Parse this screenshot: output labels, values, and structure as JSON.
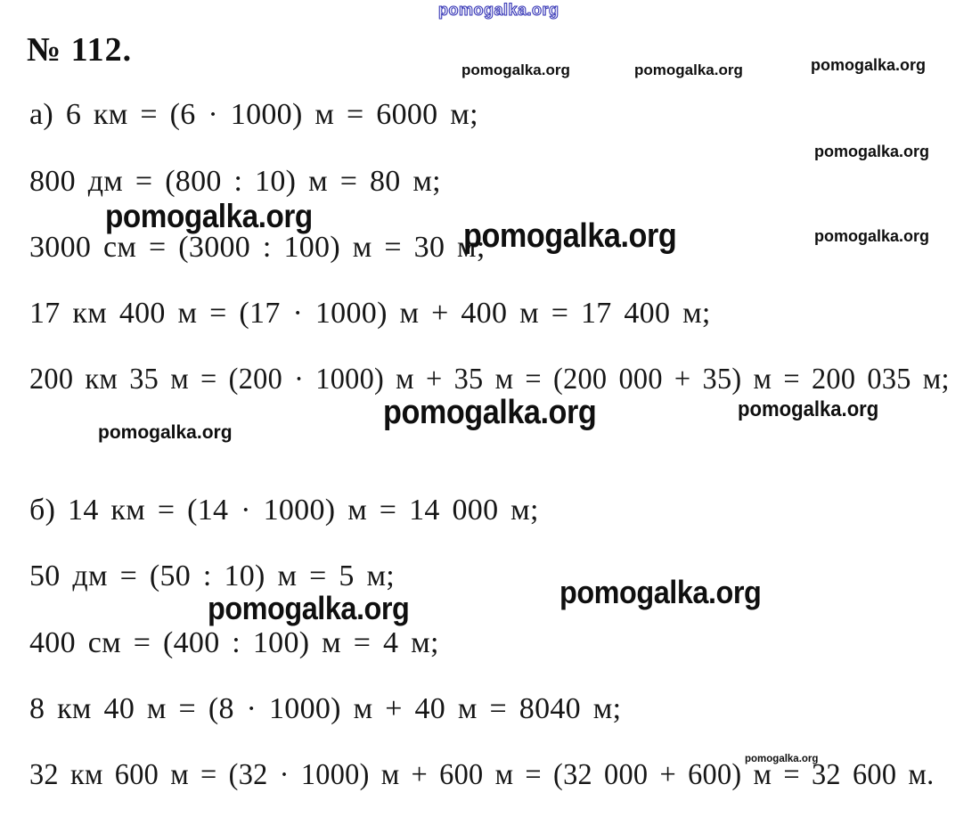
{
  "problem": {
    "number": "№ 112."
  },
  "watermark": {
    "site": "pomogalka.org",
    "accent_blue": "#3434b4",
    "text_color": "#0f0f0f"
  },
  "solution": {
    "part_a": {
      "label": "а)",
      "lines": [
        "а) 6 км = (6 · 1000) м = 6000 м;",
        "800 дм = (800 : 10) м = 80 м;",
        "3000 см = (3000 : 100) м = 30 м;",
        "17 км 400 м = (17 · 1000) м + 400 м = 17 400 м;",
        "200 км 35 м = (200 · 1000) м + 35 м = (200 000 + 35) м = 200 035 м;"
      ]
    },
    "part_b": {
      "label": "б)",
      "lines": [
        "б) 14 км = (14 · 1000) м = 14 000 м;",
        "50 дм = (50 : 10) м = 5 м;",
        "400 см = (400 : 100) м = 4 м;",
        "8 км 40 м = (8 · 1000) м + 40 м = 8040 м;",
        "32 км 600 м = (32 · 1000) м + 600 м = (32 000 + 600) м = 32 600 м."
      ]
    }
  }
}
